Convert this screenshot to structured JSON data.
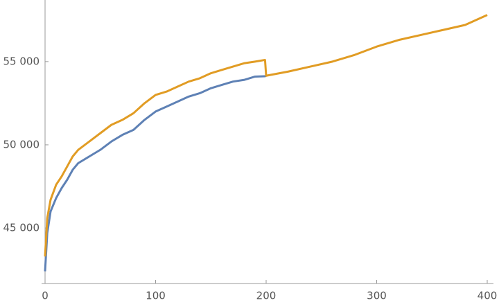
{
  "chart_data": {
    "type": "line",
    "x": [
      0,
      2,
      5,
      10,
      15,
      20,
      25,
      30,
      40,
      50,
      60,
      70,
      80,
      90,
      100,
      110,
      120,
      130,
      140,
      150,
      160,
      170,
      180,
      190,
      199,
      200,
      220,
      240,
      260,
      280,
      300,
      320,
      340,
      360,
      380,
      400
    ],
    "series": [
      {
        "color": "#5e81b5",
        "values": [
          42400,
          44700,
          46000,
          46800,
          47400,
          47900,
          48500,
          48900,
          49300,
          49700,
          50200,
          50600,
          50900,
          51500,
          52000,
          52300,
          52600,
          52900,
          53100,
          53400,
          53600,
          53800,
          53900,
          54100,
          54120,
          54150,
          null,
          null,
          null,
          null,
          null,
          null,
          null,
          null,
          null,
          null
        ]
      },
      {
        "color": "#e19c24",
        "values": [
          43300,
          45600,
          46700,
          47600,
          48100,
          48700,
          49300,
          49700,
          50200,
          50700,
          51200,
          51500,
          51900,
          52500,
          53000,
          53200,
          53500,
          53800,
          54000,
          54300,
          54500,
          54700,
          54900,
          55000,
          55100,
          54150,
          54400,
          54700,
          55000,
          55400,
          55900,
          56300,
          56600,
          56900,
          57200,
          57800
        ]
      }
    ],
    "xlim": [
      0,
      400
    ],
    "xticks": [
      0,
      100,
      200,
      300,
      400
    ],
    "ylim": [
      41670,
      58700
    ],
    "yticks": [
      {
        "value": 45000,
        "label": "45 000"
      },
      {
        "value": 50000,
        "label": "50 000"
      },
      {
        "value": 55000,
        "label": "55 000"
      }
    ]
  }
}
